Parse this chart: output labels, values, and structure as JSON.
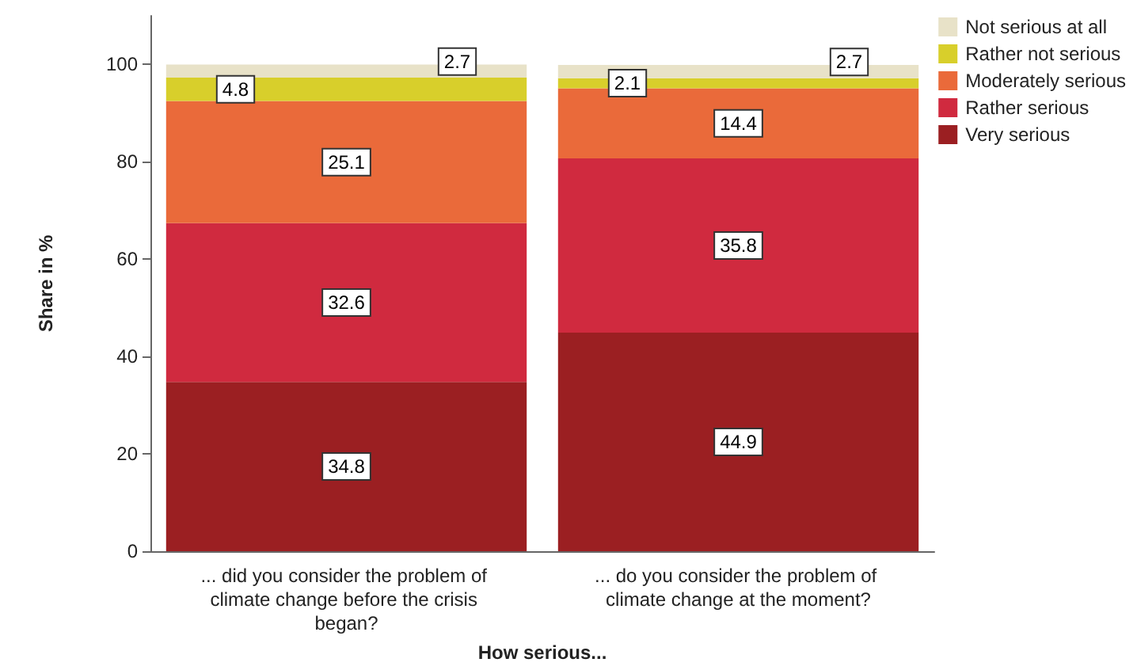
{
  "chart_data": {
    "type": "bar",
    "stacked": true,
    "xlabel": "How serious...",
    "ylabel": "Share in %",
    "categories": [
      "... did you consider the problem of climate change before the crisis began?",
      "... do you consider the problem of climate change at the moment?"
    ],
    "series": [
      {
        "name": "Very serious",
        "color": "#9b1f22",
        "values": [
          34.8,
          44.9
        ]
      },
      {
        "name": "Rather serious",
        "color": "#d02a3f",
        "values": [
          32.6,
          35.8
        ]
      },
      {
        "name": "Moderately serious",
        "color": "#ea6a3a",
        "values": [
          25.1,
          14.4
        ]
      },
      {
        "name": "Rather not serious",
        "color": "#d8cf2b",
        "values": [
          4.8,
          2.1
        ]
      },
      {
        "name": "Not serious at all",
        "color": "#e8e2c8",
        "values": [
          2.7,
          2.7
        ]
      }
    ],
    "ylim": [
      0,
      110
    ],
    "yticks": [
      0,
      20,
      40,
      60,
      80,
      100
    ],
    "grid": false,
    "legend": "top right",
    "data_labels": true
  }
}
